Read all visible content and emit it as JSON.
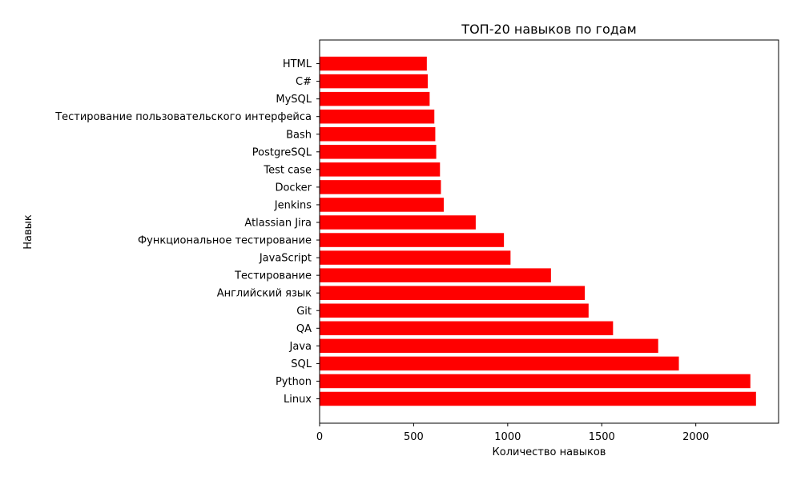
{
  "chart_data": {
    "type": "bar",
    "orientation": "horizontal",
    "title": "ТОП-20 навыков по годам",
    "xlabel": "Количество навыков",
    "ylabel": "Навык",
    "categories": [
      "Linux",
      "Python",
      "SQL",
      "Java",
      "QA",
      "Git",
      "Английский язык",
      "Тестирование",
      "JavaScript",
      "Функциональное тестирование",
      "Atlassian Jira",
      "Jenkins",
      "Docker",
      "Test case",
      "PostgreSQL",
      "Bash",
      "Тестирование пользовательского интерфейса",
      "MySQL",
      "C#",
      "HTML"
    ],
    "values": [
      2320,
      2290,
      1910,
      1800,
      1560,
      1430,
      1410,
      1230,
      1015,
      980,
      830,
      660,
      645,
      640,
      620,
      615,
      610,
      585,
      575,
      570
    ],
    "xlim": [
      0,
      2440
    ],
    "xticks": [
      0,
      500,
      1000,
      1500,
      2000
    ],
    "xtick_labels": [
      "0",
      "500",
      "1000",
      "1500",
      "2000"
    ],
    "bar_color": "#ff0000",
    "grid": false,
    "legend": false
  }
}
